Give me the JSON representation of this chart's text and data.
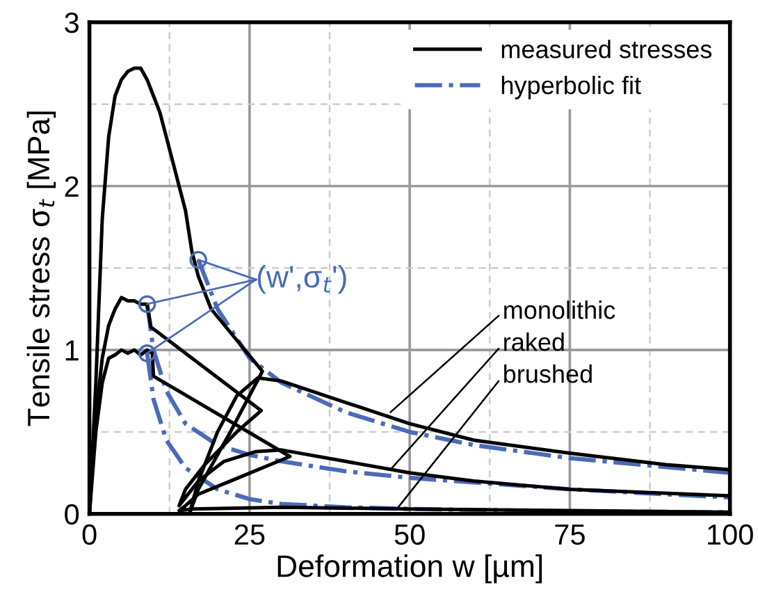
{
  "chart_data": {
    "type": "line",
    "xlabel": "Deformation w [µm]",
    "ylabel": "Tensile stress σ$_{t}$ [MPa]",
    "xlim": [
      0,
      100
    ],
    "ylim": [
      0,
      3
    ],
    "xticks": [
      0,
      {
        "value": 12.5,
        "label": null
      },
      25,
      {
        "value": 37.5,
        "label": null
      },
      50,
      {
        "value": 62.5,
        "label": null
      },
      75,
      {
        "value": 87.5,
        "label": null
      },
      100
    ],
    "yticks": [
      0,
      {
        "value": 0.5,
        "label": null
      },
      1,
      {
        "value": 1.5,
        "label": null
      },
      2,
      {
        "value": 2.5,
        "label": null
      },
      3
    ],
    "grid": true,
    "legend": "top right",
    "series": [
      {
        "name": "measured stresses",
        "color": "#000000",
        "line_style": "solid",
        "x": [
          0,
          1,
          2,
          3,
          4,
          5,
          6,
          7,
          8,
          9,
          10,
          11,
          12,
          13,
          14,
          15,
          16,
          17,
          19,
          27,
          22,
          17,
          15.6,
          17,
          20,
          23,
          26.3,
          30,
          40,
          50,
          60,
          75,
          90,
          100
        ],
        "values": [
          0,
          0.8,
          1.8,
          2.3,
          2.55,
          2.65,
          2.7,
          2.72,
          2.72,
          2.65,
          2.55,
          2.45,
          2.3,
          2.15,
          2.0,
          1.85,
          1.6,
          1.45,
          1.25,
          0.87,
          0.5,
          0.15,
          0,
          0.2,
          0.5,
          0.72,
          0.83,
          0.81,
          0.68,
          0.55,
          0.45,
          0.37,
          0.3,
          0.27
        ]
      },
      {
        "color": "#000000",
        "line_style": "solid",
        "x": [
          0,
          1,
          2,
          3,
          4,
          5,
          6,
          7,
          8,
          9,
          9.6,
          26.8,
          23,
          18,
          15,
          14,
          17,
          21,
          26,
          30,
          40,
          50,
          60,
          75,
          100
        ],
        "values": [
          0,
          0.6,
          0.95,
          1.15,
          1.25,
          1.32,
          1.3,
          1.3,
          1.28,
          1.28,
          1.14,
          0.63,
          0.5,
          0.3,
          0.15,
          0.05,
          0.2,
          0.32,
          0.38,
          0.39,
          0.32,
          0.25,
          0.2,
          0.15,
          0.11
        ]
      },
      {
        "color": "#000000",
        "line_style": "solid",
        "x": [
          0,
          1,
          2,
          3,
          4,
          5,
          6,
          7,
          8,
          9,
          9.8,
          10,
          31.3,
          22,
          17,
          15,
          14,
          16,
          30,
          50,
          75,
          100
        ],
        "values": [
          0,
          0.5,
          0.8,
          0.95,
          0.97,
          1.0,
          0.98,
          1.0,
          0.97,
          1.0,
          0.98,
          0.84,
          0.35,
          0.2,
          0.12,
          0.05,
          0.02,
          0.03,
          0.04,
          0.03,
          0.02,
          0.01
        ]
      },
      {
        "name": "hyperbolic fit",
        "color": "#4a6bb8",
        "line_style": "dashdot",
        "x": [
          17,
          20,
          25,
          30,
          40,
          50,
          60,
          75,
          100
        ],
        "values": [
          1.55,
          1.25,
          0.95,
          0.8,
          0.62,
          0.5,
          0.42,
          0.34,
          0.25
        ]
      },
      {
        "color": "#4a6bb8",
        "line_style": "dashdot",
        "x": [
          9,
          10,
          12,
          15,
          20,
          25,
          30,
          40,
          50,
          75,
          100
        ],
        "values": [
          1.28,
          1.0,
          0.75,
          0.55,
          0.42,
          0.36,
          0.32,
          0.26,
          0.22,
          0.15,
          0.1
        ]
      },
      {
        "color": "#4a6bb8",
        "line_style": "dashdot",
        "x": [
          9,
          10,
          12,
          15,
          20,
          25,
          30,
          40,
          50,
          75,
          100
        ],
        "values": [
          0.98,
          0.7,
          0.45,
          0.28,
          0.15,
          0.09,
          0.06,
          0.04,
          0.03,
          0.015,
          0.01
        ]
      }
    ],
    "annotations": [
      {
        "text": "(w',σ$_{t}$')",
        "x": 17,
        "y": 1.55
      },
      {
        "text": "monolithic",
        "x": 47,
        "y": 0.62
      },
      {
        "text": "raked",
        "x": 47,
        "y": 0.27
      },
      {
        "text": "brushed",
        "x": 48,
        "y": 0.03
      }
    ]
  }
}
